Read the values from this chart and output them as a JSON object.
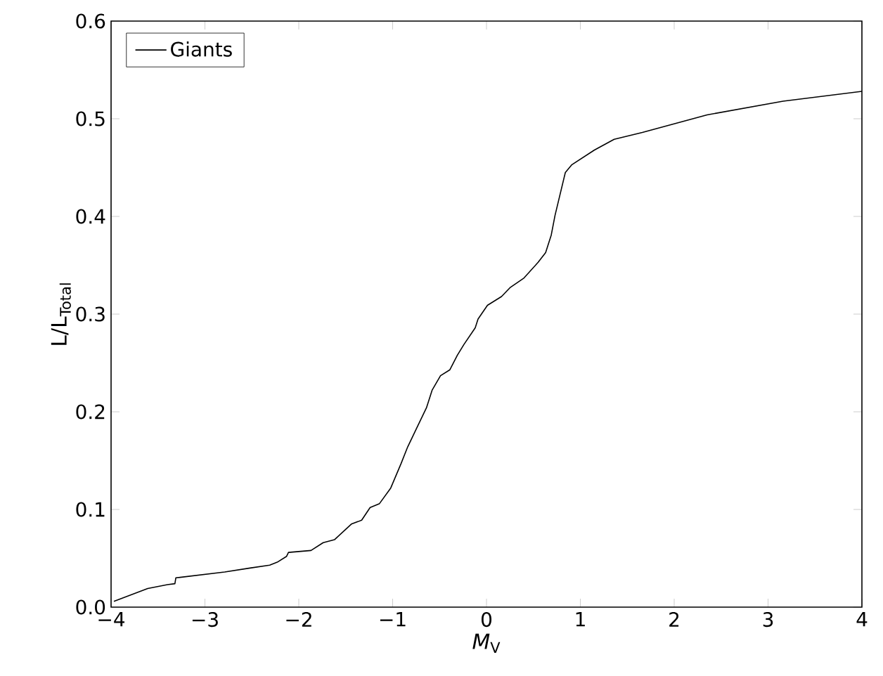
{
  "chart_data": {
    "type": "line",
    "xlabel": "*M*$_{V}$",
    "ylabel": "L/L$_{Total}$",
    "xlim": [
      -4,
      4
    ],
    "ylim": [
      0,
      0.6
    ],
    "xticks": [
      {
        "value": -4,
        "label": "−4"
      },
      {
        "value": -3,
        "label": "−3"
      },
      {
        "value": -2,
        "label": "−2"
      },
      {
        "value": -1,
        "label": "−1"
      },
      {
        "value": 0,
        "label": "0"
      },
      {
        "value": 1,
        "label": "1"
      },
      {
        "value": 2,
        "label": "2"
      },
      {
        "value": 3,
        "label": "3"
      },
      {
        "value": 4,
        "label": "4"
      }
    ],
    "yticks": [
      {
        "value": 0,
        "label": "0.0"
      },
      {
        "value": 0.1,
        "label": "0.1"
      },
      {
        "value": 0.2,
        "label": "0.2"
      },
      {
        "value": 0.3,
        "label": "0.3"
      },
      {
        "value": 0.4,
        "label": "0.4"
      },
      {
        "value": 0.5,
        "label": "0.5"
      },
      {
        "value": 0.6,
        "label": "0.6"
      }
    ],
    "grid": false,
    "legend": "top left",
    "marker": "none",
    "line_style": "solid",
    "series": [
      {
        "name": "Giants",
        "color": "#000000",
        "x": [
          -3.97,
          -3.61,
          -3.4,
          -3.32,
          -3.31,
          -2.79,
          -2.52,
          -2.31,
          -2.23,
          -2.13,
          -2.11,
          -1.87,
          -1.74,
          -1.62,
          -1.44,
          -1.33,
          -1.24,
          -1.14,
          -1.02,
          -0.91,
          -0.84,
          -0.73,
          -0.64,
          -0.58,
          -0.49,
          -0.39,
          -0.31,
          -0.24,
          -0.12,
          -0.09,
          0.01,
          0.16,
          0.25,
          0.4,
          0.55,
          0.63,
          0.69,
          0.73,
          0.84,
          0.91,
          1.15,
          1.36,
          1.66,
          2.35,
          3.16,
          4.0
        ],
        "values": [
          0.006,
          0.019,
          0.023,
          0.024,
          0.03,
          0.036,
          0.04,
          0.043,
          0.046,
          0.052,
          0.056,
          0.058,
          0.066,
          0.069,
          0.085,
          0.089,
          0.102,
          0.106,
          0.122,
          0.147,
          0.164,
          0.186,
          0.204,
          0.222,
          0.237,
          0.243,
          0.258,
          0.269,
          0.286,
          0.295,
          0.309,
          0.318,
          0.327,
          0.337,
          0.353,
          0.363,
          0.381,
          0.401,
          0.445,
          0.453,
          0.468,
          0.479,
          0.486,
          0.504,
          0.518,
          0.528
        ]
      }
    ]
  }
}
